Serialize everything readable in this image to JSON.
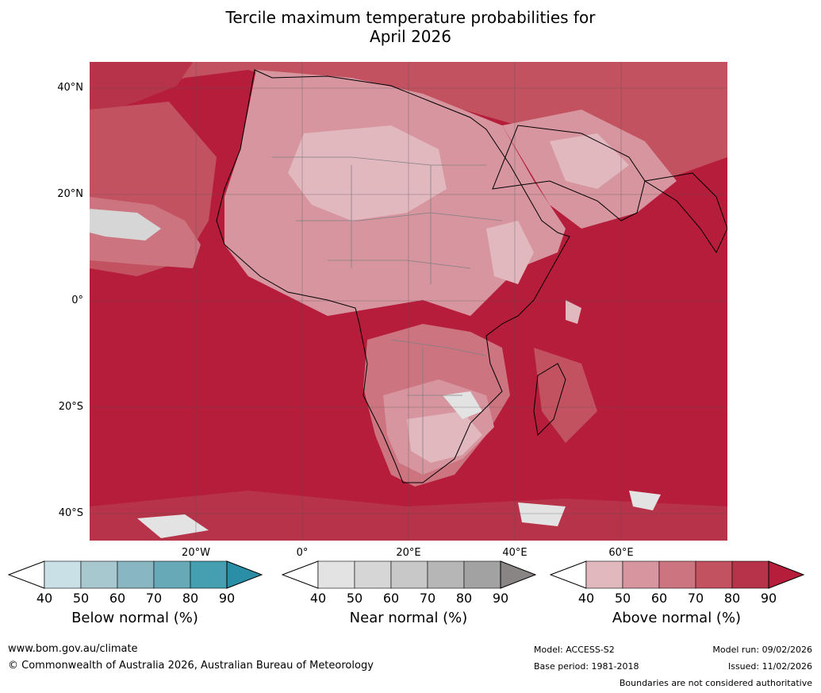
{
  "title_line1": "Tercile maximum temperature probabilities for",
  "title_line2": "April 2026",
  "latitudes": [
    "40°N",
    "20°N",
    "0°",
    "20°S",
    "40°S"
  ],
  "longitudes": [
    "20°W",
    "0°",
    "20°E",
    "40°E",
    "60°E"
  ],
  "colorbars": [
    {
      "label": "Below normal (%)",
      "ticks": [
        "40",
        "50",
        "60",
        "70",
        "80",
        "90"
      ],
      "colors": [
        "#ffffff",
        "#c9e0e6",
        "#a8c8cf",
        "#88b6c2",
        "#68a9b8",
        "#469fb1",
        "#2a8fa6"
      ]
    },
    {
      "label": "Near normal (%)",
      "ticks": [
        "40",
        "50",
        "60",
        "70",
        "80",
        "90"
      ],
      "colors": [
        "#ffffff",
        "#e3e3e3",
        "#d6d6d6",
        "#c8c8c8",
        "#b6b6b6",
        "#a2a2a2",
        "#8a8585"
      ]
    },
    {
      "label": "Above normal (%)",
      "ticks": [
        "40",
        "50",
        "60",
        "70",
        "80",
        "90"
      ],
      "colors": [
        "#ffffff",
        "#e2b8bf",
        "#d6959f",
        "#cc7480",
        "#c2525f",
        "#b63349",
        "#b61d3a"
      ]
    }
  ],
  "footer": {
    "website": "www.bom.gov.au/climate",
    "copyright": "© Commonwealth of Australia 2026, Australian Bureau of Meteorology",
    "model": "Model: ACCESS-S2",
    "base_period": "Base period: 1981-2018",
    "model_run": "Model run: 09/02/2026",
    "issued": "Issued: 11/02/2026",
    "disclaimer": "Boundaries are not considered authoritative"
  }
}
